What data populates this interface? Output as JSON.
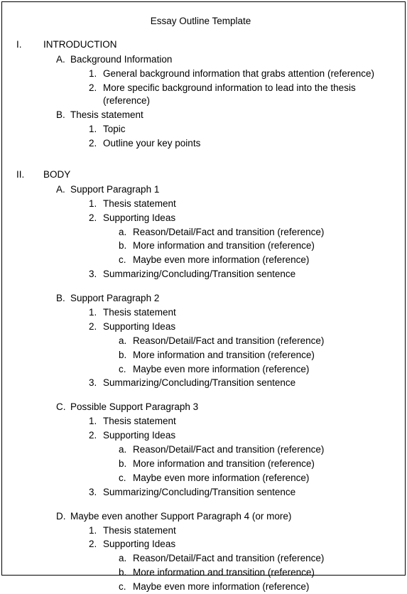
{
  "title": "Essay Outline Template",
  "sec1": {
    "roman": "I.",
    "label": "INTRODUCTION",
    "A": {
      "marker": "A.",
      "label": "Background Information",
      "i1": {
        "m": "1.",
        "t": "General background information that grabs attention (reference)"
      },
      "i2": {
        "m": "2.",
        "t": "More specific background information to lead into the thesis (reference)"
      }
    },
    "B": {
      "marker": "B.",
      "label": "Thesis statement",
      "i1": {
        "m": "1.",
        "t": "Topic"
      },
      "i2": {
        "m": "2.",
        "t": "Outline your key points"
      }
    }
  },
  "sec2": {
    "roman": "II.",
    "label": "BODY",
    "A": {
      "marker": "A.",
      "label": "Support Paragraph  1",
      "i1": {
        "m": "1.",
        "t": "Thesis statement"
      },
      "i2": {
        "m": "2.",
        "t": "Supporting Ideas",
        "a": {
          "m": "a.",
          "t": "Reason/Detail/Fact  and transition (reference)"
        },
        "b": {
          "m": "b.",
          "t": "More information and transition (reference)"
        },
        "c": {
          "m": "c.",
          "t": "Maybe even more information (reference)"
        }
      },
      "i3": {
        "m": "3.",
        "t": "Summarizing/Concluding/Transition  sentence"
      }
    },
    "B": {
      "marker": "B.",
      "label": "Support Paragraph  2",
      "i1": {
        "m": "1.",
        "t": "Thesis statement"
      },
      "i2": {
        "m": "2.",
        "t": "Supporting Ideas",
        "a": {
          "m": "a.",
          "t": "Reason/Detail/Fact  and transition (reference)"
        },
        "b": {
          "m": "b.",
          "t": "More information and transition (reference)"
        },
        "c": {
          "m": "c.",
          "t": "Maybe even more information (reference)"
        }
      },
      "i3": {
        "m": "3.",
        "t": "Summarizing/Concluding/Transition  sentence"
      }
    },
    "C": {
      "marker": "C.",
      "label": "Possible Support Paragraph  3",
      "i1": {
        "m": "1.",
        "t": "Thesis statement"
      },
      "i2": {
        "m": "2.",
        "t": "Supporting Ideas",
        "a": {
          "m": "a.",
          "t": "Reason/Detail/Fact  and transition (reference)"
        },
        "b": {
          "m": "b.",
          "t": "More information and transition (reference)"
        },
        "c": {
          "m": "c.",
          "t": "Maybe even more information (reference)"
        }
      },
      "i3": {
        "m": "3.",
        "t": "Summarizing/Concluding/Transition  sentence"
      }
    },
    "D": {
      "marker": "D.",
      "label": "Maybe even another Support Paragraph  4 (or more)",
      "i1": {
        "m": "1.",
        "t": "Thesis statement"
      },
      "i2": {
        "m": "2.",
        "t": "Supporting Ideas",
        "a": {
          "m": "a.",
          "t": "Reason/Detail/Fact  and transition (reference)"
        },
        "b": {
          "m": "b.",
          "t": "More information and transition (reference)"
        },
        "c": {
          "m": "c.",
          "t": "Maybe even more information (reference)"
        }
      }
    }
  }
}
